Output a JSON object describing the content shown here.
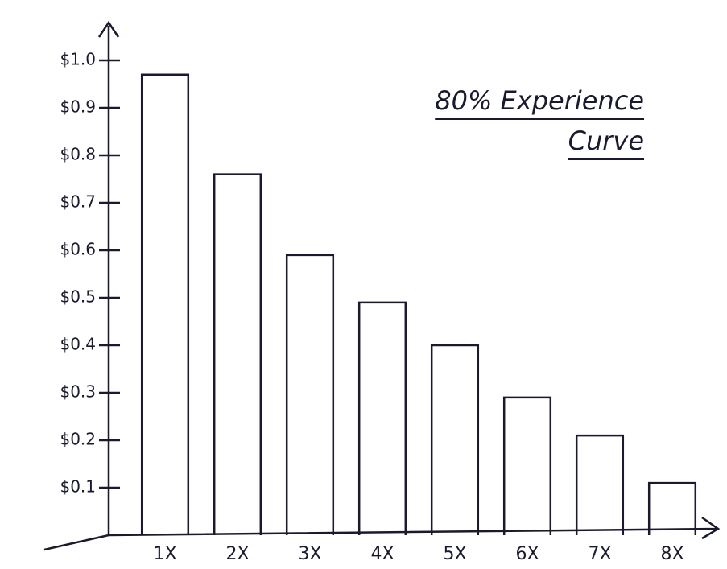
{
  "chart_data": {
    "type": "bar",
    "title": "80% Experience Curve",
    "categories": [
      "1X",
      "2X",
      "3X",
      "4X",
      "5X",
      "6X",
      "7X",
      "8X"
    ],
    "values": [
      0.97,
      0.76,
      0.59,
      0.49,
      0.4,
      0.29,
      0.21,
      0.11
    ],
    "color": "#1a1a2e",
    "ylim": [
      0,
      1.1
    ],
    "yticks": [
      {
        "value": 0.1,
        "label": "$0.1"
      },
      {
        "value": 0.2,
        "label": "$0.2"
      },
      {
        "value": 0.3,
        "label": "$0.3"
      },
      {
        "value": 0.4,
        "label": "$0.4"
      },
      {
        "value": 0.5,
        "label": "$0.5"
      },
      {
        "value": 0.6,
        "label": "$0.6"
      },
      {
        "value": 0.7,
        "label": "$0.7"
      },
      {
        "value": 0.8,
        "label": "$0.8"
      },
      {
        "value": 0.9,
        "label": "$0.9"
      },
      {
        "value": 1.0,
        "label": "$1.0"
      }
    ],
    "grid": false
  }
}
